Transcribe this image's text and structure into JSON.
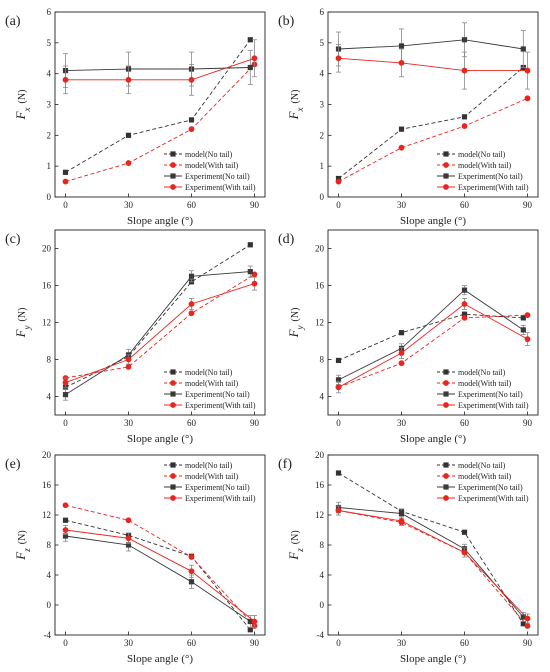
{
  "colors": {
    "model_no_tail": "#333333",
    "model_with_tail": "#e8261e",
    "exp_no_tail": "#3a3a3a",
    "exp_with_tail": "#e8261e",
    "error_bar": "#888888"
  },
  "series_styles": [
    {
      "name": "model(No tail)",
      "dashed": true,
      "marker": "square",
      "color": "#333333"
    },
    {
      "name": "model(With tail)",
      "dashed": true,
      "marker": "circle",
      "color": "#e8261e"
    },
    {
      "name": "Experiment(No tail)",
      "dashed": false,
      "marker": "square",
      "color": "#3a3a3a"
    },
    {
      "name": "Experiment(With tail)",
      "dashed": false,
      "marker": "circle",
      "color": "#e8261e"
    }
  ],
  "chart_data": [
    {
      "type": "line",
      "panel_label": "(a)",
      "xlabel": "Slope angle (°)",
      "ylabel_main": "F",
      "ylabel_sub": "x",
      "ylabel_unit": "(N)",
      "xlim": [
        -5,
        95
      ],
      "ylim": [
        0,
        6
      ],
      "xticks": [
        0,
        30,
        60,
        90
      ],
      "yticks": [
        0,
        1,
        2,
        3,
        4,
        5,
        6
      ],
      "legend": "bottom-right",
      "series": [
        {
          "name": "model(No tail)",
          "x": [
            0,
            30,
            60,
            88
          ],
          "y": [
            0.8,
            2.0,
            2.5,
            5.1
          ]
        },
        {
          "name": "model(With tail)",
          "x": [
            0,
            30,
            60,
            90
          ],
          "y": [
            0.5,
            1.1,
            2.2,
            4.3
          ]
        },
        {
          "name": "Experiment(No tail)",
          "x": [
            0,
            30,
            60,
            88
          ],
          "y": [
            4.1,
            4.15,
            4.15,
            4.2
          ],
          "err": [
            0.55,
            0.55,
            0.55,
            0.55
          ]
        },
        {
          "name": "Experiment(With tail)",
          "x": [
            0,
            30,
            60,
            90
          ],
          "y": [
            3.8,
            3.8,
            3.8,
            4.5
          ],
          "err": [
            0.45,
            0.45,
            0.5,
            0.6
          ]
        }
      ]
    },
    {
      "type": "line",
      "panel_label": "(b)",
      "xlabel": "Slope angle (°)",
      "ylabel_main": "F",
      "ylabel_sub": "x",
      "ylabel_unit": "(N)",
      "xlim": [
        -5,
        95
      ],
      "ylim": [
        0,
        6
      ],
      "xticks": [
        0,
        30,
        60,
        90
      ],
      "yticks": [
        0,
        1,
        2,
        3,
        4,
        5,
        6
      ],
      "legend": "bottom-right",
      "series": [
        {
          "name": "model(No tail)",
          "x": [
            0,
            30,
            60,
            88
          ],
          "y": [
            0.6,
            2.2,
            2.6,
            4.2
          ]
        },
        {
          "name": "model(With tail)",
          "x": [
            0,
            30,
            60,
            90
          ],
          "y": [
            0.5,
            1.6,
            2.3,
            3.2
          ]
        },
        {
          "name": "Experiment(No tail)",
          "x": [
            0,
            30,
            60,
            88
          ],
          "y": [
            4.8,
            4.9,
            5.1,
            4.8
          ],
          "err": [
            0.55,
            0.55,
            0.55,
            0.6
          ]
        },
        {
          "name": "Experiment(With tail)",
          "x": [
            0,
            30,
            60,
            90
          ],
          "y": [
            4.5,
            4.35,
            4.1,
            4.1
          ],
          "err": [
            0.45,
            0.45,
            0.6,
            0.6
          ]
        }
      ]
    },
    {
      "type": "line",
      "panel_label": "(c)",
      "xlabel": "Slope angle (°)",
      "ylabel_main": "F",
      "ylabel_sub": "y",
      "ylabel_unit": "(N)",
      "xlim": [
        -5,
        95
      ],
      "ylim": [
        2,
        22
      ],
      "xticks": [
        0,
        30,
        60,
        90
      ],
      "yticks": [
        4,
        8,
        12,
        16,
        20
      ],
      "legend": "bottom-right",
      "series": [
        {
          "name": "model(No tail)",
          "x": [
            0,
            30,
            60,
            88
          ],
          "y": [
            5.0,
            8.3,
            16.4,
            20.4
          ]
        },
        {
          "name": "model(With tail)",
          "x": [
            0,
            30,
            60,
            90
          ],
          "y": [
            6.0,
            7.2,
            13.0,
            17.2
          ]
        },
        {
          "name": "Experiment(No tail)",
          "x": [
            0,
            30,
            60,
            88
          ],
          "y": [
            4.2,
            8.5,
            17.0,
            17.5
          ],
          "err": [
            0.6,
            0.6,
            0.6,
            0.6
          ]
        },
        {
          "name": "Experiment(With tail)",
          "x": [
            0,
            30,
            60,
            90
          ],
          "y": [
            5.5,
            8.0,
            14.0,
            16.2
          ],
          "err": [
            0.5,
            0.5,
            0.6,
            0.7
          ]
        }
      ]
    },
    {
      "type": "line",
      "panel_label": "(d)",
      "xlabel": "Slope angle (°)",
      "ylabel_main": "F",
      "ylabel_sub": "y",
      "ylabel_unit": "(N)",
      "xlim": [
        -5,
        95
      ],
      "ylim": [
        2,
        22
      ],
      "xticks": [
        0,
        30,
        60,
        90
      ],
      "yticks": [
        4,
        8,
        12,
        16,
        20
      ],
      "legend": "bottom-right",
      "series": [
        {
          "name": "model(No tail)",
          "x": [
            0,
            30,
            60,
            88
          ],
          "y": [
            7.9,
            10.9,
            12.9,
            12.5
          ]
        },
        {
          "name": "model(With tail)",
          "x": [
            0,
            30,
            60,
            90
          ],
          "y": [
            5.0,
            7.6,
            12.5,
            12.8
          ]
        },
        {
          "name": "Experiment(No tail)",
          "x": [
            0,
            30,
            60,
            88
          ],
          "y": [
            5.8,
            9.2,
            15.5,
            11.2
          ],
          "err": [
            0.5,
            0.5,
            0.5,
            0.5
          ]
        },
        {
          "name": "Experiment(With tail)",
          "x": [
            0,
            30,
            60,
            90
          ],
          "y": [
            5.0,
            8.7,
            14.0,
            10.2
          ],
          "err": [
            0.6,
            0.6,
            0.6,
            0.7
          ]
        }
      ]
    },
    {
      "type": "line",
      "panel_label": "(e)",
      "xlabel": "Slope angle (°)",
      "ylabel_main": "F",
      "ylabel_sub": "z",
      "ylabel_unit": "(N)",
      "xlim": [
        -5,
        95
      ],
      "ylim": [
        -4,
        20
      ],
      "xticks": [
        0,
        30,
        60,
        90
      ],
      "yticks": [
        -4,
        0,
        4,
        8,
        12,
        16,
        20
      ],
      "legend": "top-right",
      "series": [
        {
          "name": "model(No tail)",
          "x": [
            0,
            30,
            60,
            88
          ],
          "y": [
            11.3,
            9.3,
            6.5,
            -3.3
          ]
        },
        {
          "name": "model(With tail)",
          "x": [
            0,
            30,
            60,
            90
          ],
          "y": [
            13.3,
            11.3,
            6.4,
            -2.8
          ]
        },
        {
          "name": "Experiment(No tail)",
          "x": [
            0,
            30,
            60,
            88
          ],
          "y": [
            9.2,
            8.0,
            3.1,
            -2.2
          ],
          "err": [
            0.7,
            0.8,
            0.9,
            0.8
          ]
        },
        {
          "name": "Experiment(With tail)",
          "x": [
            0,
            30,
            60,
            90
          ],
          "y": [
            10.0,
            8.9,
            4.5,
            -2.2
          ],
          "err": [
            0.6,
            0.7,
            0.8,
            0.8
          ]
        }
      ]
    },
    {
      "type": "line",
      "panel_label": "(f)",
      "xlabel": "Slope angle (°)",
      "ylabel_main": "F",
      "ylabel_sub": "z",
      "ylabel_unit": "(N)",
      "xlim": [
        -5,
        95
      ],
      "ylim": [
        -4,
        20
      ],
      "xticks": [
        0,
        30,
        60,
        90
      ],
      "yticks": [
        -4,
        0,
        4,
        8,
        12,
        16,
        20
      ],
      "legend": "top-right",
      "series": [
        {
          "name": "model(No tail)",
          "x": [
            0,
            30,
            60,
            88
          ],
          "y": [
            17.6,
            12.5,
            9.7,
            -2.5
          ]
        },
        {
          "name": "model(With tail)",
          "x": [
            0,
            30,
            60,
            90
          ],
          "y": [
            12.6,
            11.0,
            7.0,
            -2.8
          ]
        },
        {
          "name": "Experiment(No tail)",
          "x": [
            0,
            30,
            60,
            88
          ],
          "y": [
            13.0,
            12.2,
            7.5,
            -1.6
          ],
          "err": [
            0.7,
            0.6,
            0.6,
            0.6
          ]
        },
        {
          "name": "Experiment(With tail)",
          "x": [
            0,
            30,
            60,
            90
          ],
          "y": [
            12.6,
            11.2,
            7.0,
            -1.8
          ],
          "err": [
            0.6,
            0.6,
            0.6,
            0.6
          ]
        }
      ]
    }
  ]
}
